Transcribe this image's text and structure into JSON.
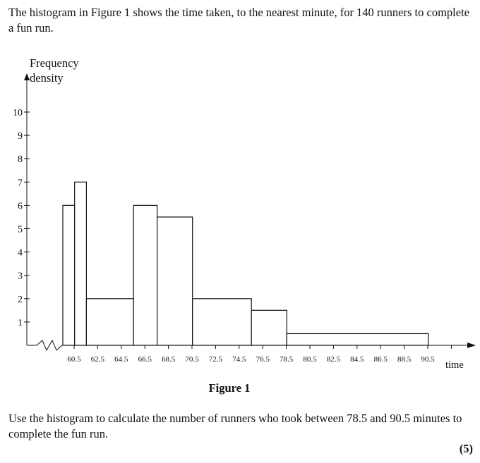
{
  "intro_text": "The histogram in Figure 1 shows the time taken, to the nearest minute, for 140 runners to complete a fun run.",
  "figure_caption": "Figure 1",
  "question_text": "Use the histogram to calculate the number of runners who took between 78.5 and 90.5 minutes to complete the fun run.",
  "marks": "(5)",
  "chart_data": {
    "type": "histogram",
    "title": "",
    "ylabel_line1": "Frequency",
    "ylabel_line2": "density",
    "xlabel": "time",
    "ylim": [
      0,
      10
    ],
    "y_ticks": [
      1,
      2,
      3,
      4,
      5,
      6,
      7,
      8,
      9,
      10
    ],
    "xlim": [
      60.5,
      90.5
    ],
    "x_ticks": [
      60.5,
      62.5,
      64.5,
      66.5,
      68.5,
      70.5,
      72.5,
      74.5,
      76.5,
      78.5,
      80.5,
      82.5,
      84.5,
      86.5,
      88.5,
      90.5
    ],
    "x_axis_break": true,
    "grid": false,
    "bins": [
      {
        "from": 60.5,
        "to": 61.5,
        "frequency_density": 6
      },
      {
        "from": 61.5,
        "to": 62.5,
        "frequency_density": 7
      },
      {
        "from": 62.5,
        "to": 66.5,
        "frequency_density": 2
      },
      {
        "from": 66.5,
        "to": 68.5,
        "frequency_density": 6
      },
      {
        "from": 68.5,
        "to": 71.5,
        "frequency_density": 5.5
      },
      {
        "from": 71.5,
        "to": 76.5,
        "frequency_density": 2
      },
      {
        "from": 76.5,
        "to": 79.5,
        "frequency_density": 1.5
      },
      {
        "from": 79.5,
        "to": 91.5,
        "frequency_density": 0.5
      }
    ]
  }
}
